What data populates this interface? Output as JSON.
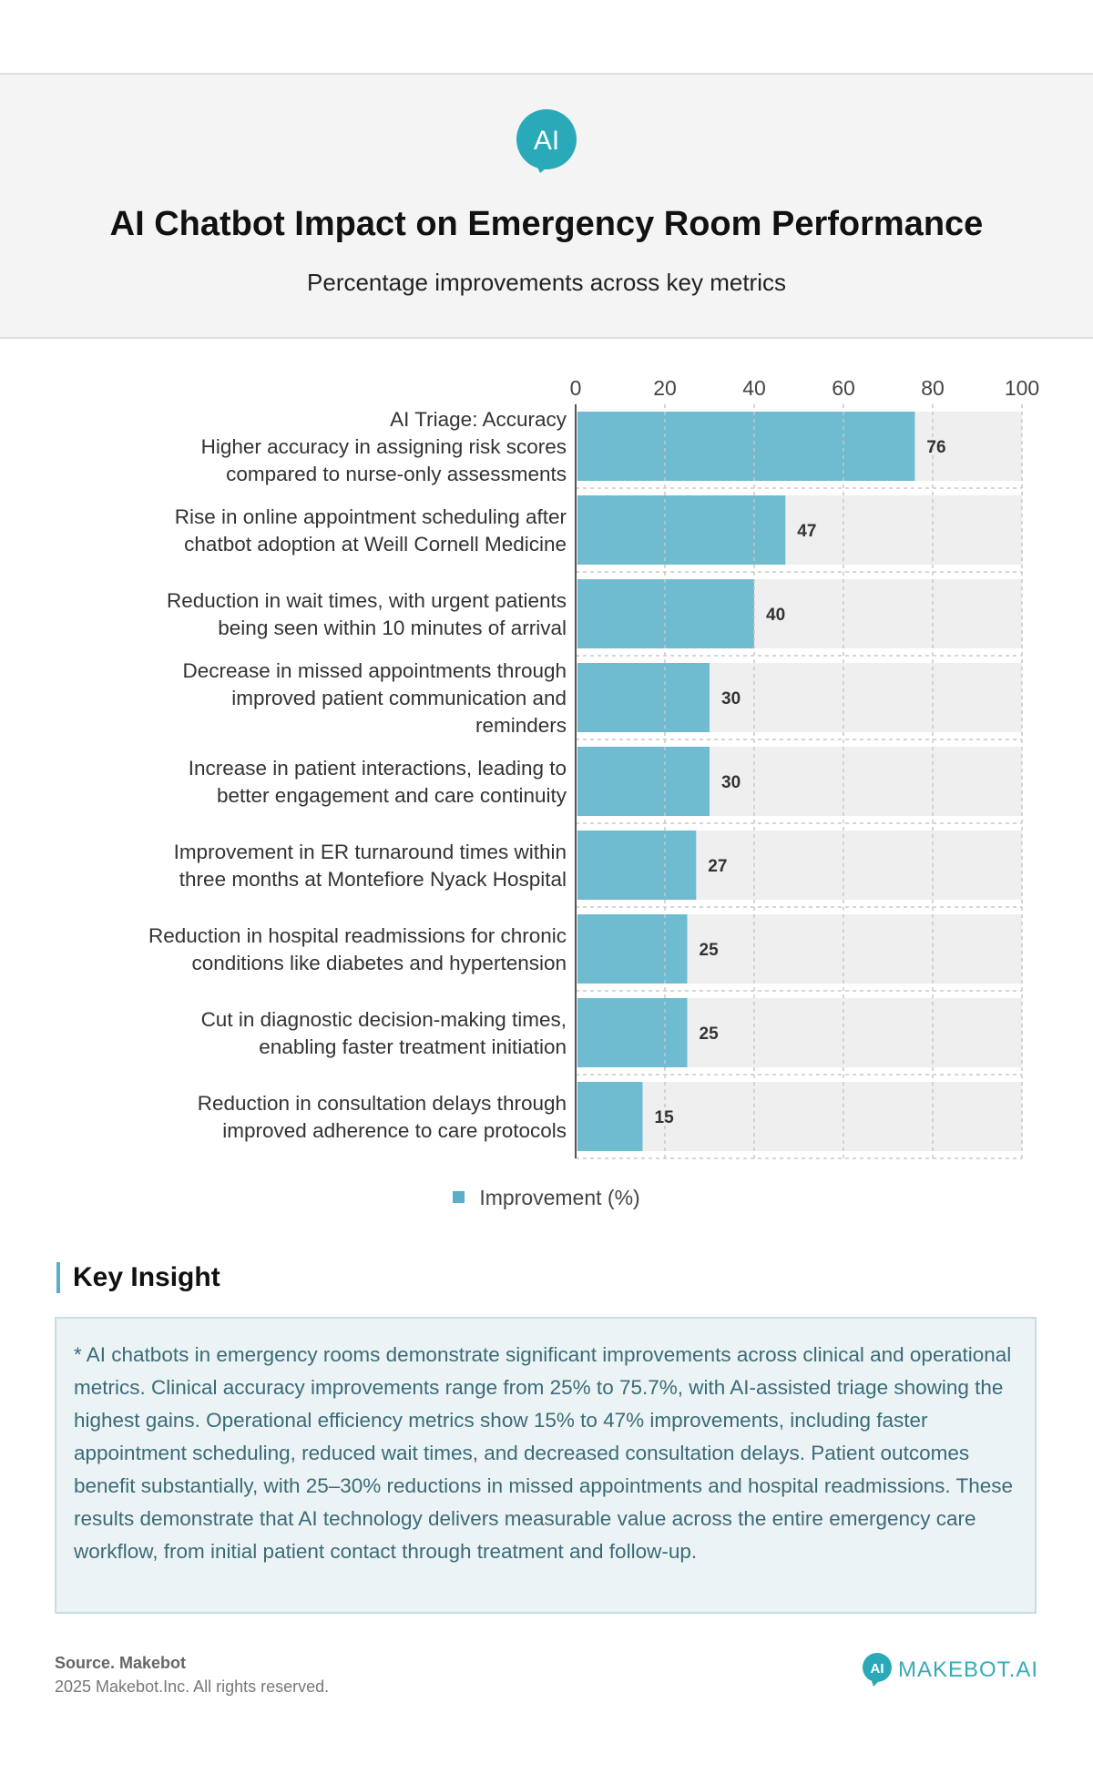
{
  "header": {
    "logo_text": "AI",
    "title": "AI Chatbot Impact on Emergency Room Performance",
    "subtitle": "Percentage improvements across key metrics"
  },
  "chart_data": {
    "type": "bar",
    "orientation": "horizontal",
    "categories": [
      [
        "AI Triage: Accuracy",
        "Higher accuracy in assigning risk scores",
        "compared to nurse-only assessments"
      ],
      [
        "Rise in online appointment scheduling after",
        "chatbot adoption at Weill Cornell Medicine"
      ],
      [
        "Reduction in wait times, with urgent patients",
        "being seen within 10 minutes of arrival"
      ],
      [
        "Decrease in missed appointments through",
        "improved patient communication and",
        "reminders"
      ],
      [
        "Increase in patient interactions, leading to",
        "better engagement and care continuity"
      ],
      [
        "Improvement in ER turnaround times within",
        "three months at Montefiore Nyack Hospital"
      ],
      [
        "Reduction in hospital readmissions for chronic",
        "conditions like diabetes and hypertension"
      ],
      [
        "Cut in diagnostic decision-making times,",
        "enabling faster treatment initiation"
      ],
      [
        "Reduction in consultation delays through",
        "improved adherence to care protocols"
      ]
    ],
    "series": [
      {
        "name": "Improvement (%)",
        "values": [
          76,
          47,
          40,
          30,
          30,
          27,
          25,
          25,
          15
        ]
      }
    ],
    "xlim": [
      0,
      100
    ],
    "xticks": [
      0,
      20,
      40,
      60,
      80,
      100
    ],
    "xlabel": "",
    "ylabel": "",
    "grid": true,
    "legend_position": "bottom-center",
    "colors": {
      "bar": "#6fbbd0",
      "track": "#efefef",
      "grid": "#c8c8c8",
      "axis": "#555555"
    }
  },
  "legend": {
    "label": "Improvement (%)"
  },
  "insight": {
    "title": "Key Insight",
    "text": "* AI chatbots in emergency rooms demonstrate significant improvements across clinical and operational metrics. Clinical accuracy improvements range from 25% to 75.7%, with AI-assisted triage showing the highest gains. Operational efficiency metrics show 15% to 47% improvements, including faster appointment scheduling, reduced wait times, and decreased consultation delays. Patient outcomes benefit substantially, with 25–30% reductions in missed appointments and hospital readmissions. These results demonstrate that AI technology delivers measurable value across the entire emergency care workflow, from initial patient contact through treatment and follow-up."
  },
  "footer": {
    "source": "Source. Makebot",
    "copyright": "2025 Makebot.Inc. All rights reserved.",
    "brand_icon_text": "AI",
    "brand_name": "MAKEBOT.AI"
  },
  "colors": {
    "accent": "#5aaec8",
    "logo": "#2aaab8",
    "header_bg": "#f4f4f4",
    "insight_bg": "#ecf3f5",
    "insight_text": "#3a6b78"
  }
}
